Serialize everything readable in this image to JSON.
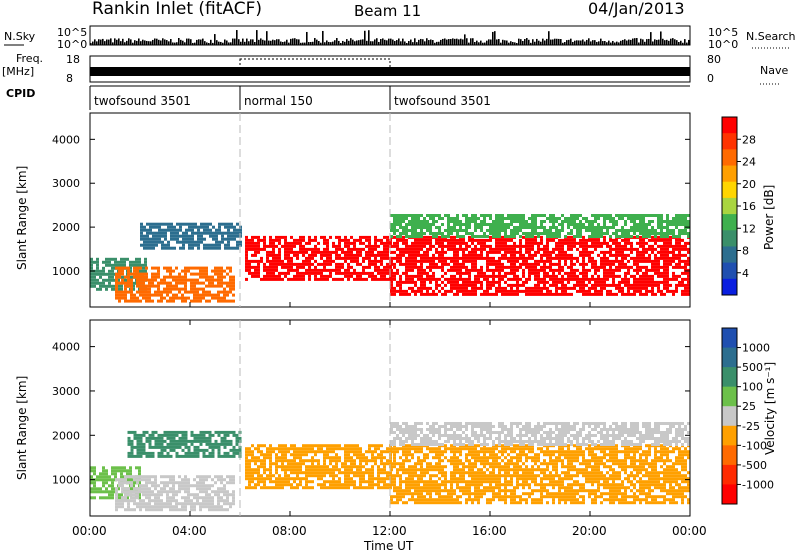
{
  "header": {
    "station": "Rankin Inlet (fitACF)",
    "beam": "Beam 11",
    "date": "04/Jan/2013"
  },
  "status_panels": {
    "nsky_label": "N.Sky",
    "nsky_ticks": [
      "10^5",
      "10^0"
    ],
    "nsearch_label": "N.Search",
    "nsearch_ticks": [
      "10^5",
      "10^0"
    ],
    "freq_label": "Freq.",
    "freq_unit": "[MHz]",
    "freq_ticks": [
      "18",
      "8"
    ],
    "nave_label": "Nave",
    "nave_ticks": [
      "80",
      "0"
    ],
    "cpid_label": "CPID",
    "cpid_segments": [
      {
        "name": "twofsound 3501",
        "start_h": 0,
        "end_h": 6
      },
      {
        "name": "normal 150",
        "start_h": 6,
        "end_h": 12
      },
      {
        "name": "twofsound 3501",
        "start_h": 12,
        "end_h": 24
      }
    ]
  },
  "axes": {
    "ylabel": "Slant Range [km]",
    "xlabel": "Time UT",
    "x_ticks": [
      "00:00",
      "04:00",
      "08:00",
      "12:00",
      "16:00",
      "20:00",
      "00:00"
    ],
    "y_ticks": [
      "1000",
      "2000",
      "3000",
      "4000"
    ]
  },
  "power_scale": {
    "label": "Power [dB]",
    "ticks": [
      "28",
      "24",
      "20",
      "16",
      "12",
      "8",
      "4"
    ],
    "colors": [
      "#ff0000",
      "#ff3300",
      "#ff6a00",
      "#ff9f00",
      "#ffd500",
      "#a9d540",
      "#3fb04e",
      "#3a8f6a",
      "#2c6e8f",
      "#1f4fb0",
      "#0a1fe0"
    ]
  },
  "velocity_scale": {
    "label": "Velocity [m s⁻¹]",
    "ticks": [
      "1000",
      "500",
      "100",
      "25",
      "-25",
      "-100",
      "-500",
      "-1000"
    ],
    "colors": [
      "#1f4fb0",
      "#2c6e8f",
      "#3a8f6a",
      "#6cc04a",
      "#c8c8c8",
      "#ffa000",
      "#ff6a00",
      "#ff2a00",
      "#ff0000"
    ]
  },
  "chart_data": [
    {
      "type": "heatmap",
      "title": "",
      "xlabel": "Time UT",
      "ylabel": "Slant Range [km]",
      "xlim": [
        0,
        24
      ],
      "ylim": [
        180,
        4600
      ],
      "colorbar": {
        "label": "Power [dB]",
        "range": [
          0,
          32
        ]
      },
      "regions": [
        {
          "t": [
            0.0,
            2.2
          ],
          "r": [
            600,
            1300
          ],
          "value": 10
        },
        {
          "t": [
            1.0,
            5.8
          ],
          "r": [
            300,
            1100
          ],
          "value": 26
        },
        {
          "t": [
            6.2,
            12.0
          ],
          "r": [
            800,
            1800
          ],
          "value": 30
        },
        {
          "t": [
            12.0,
            24.0
          ],
          "r": [
            500,
            1800
          ],
          "value": 30
        },
        {
          "t": [
            12.0,
            24.0
          ],
          "r": [
            1800,
            2300
          ],
          "value": 14
        },
        {
          "t": [
            2.0,
            6.0
          ],
          "r": [
            1500,
            2100
          ],
          "value": 8
        }
      ]
    },
    {
      "type": "heatmap",
      "title": "",
      "xlabel": "Time UT",
      "ylabel": "Slant Range [km]",
      "xlim": [
        0,
        24
      ],
      "ylim": [
        180,
        4600
      ],
      "colorbar": {
        "label": "Velocity [m s⁻¹]",
        "range": [
          -1000,
          1000
        ]
      },
      "regions": [
        {
          "t": [
            0.0,
            2.0
          ],
          "r": [
            600,
            1300
          ],
          "value": 150
        },
        {
          "t": [
            1.0,
            5.8
          ],
          "r": [
            300,
            1100
          ],
          "value": 0
        },
        {
          "t": [
            6.2,
            12.0
          ],
          "r": [
            800,
            1800
          ],
          "value": -200
        },
        {
          "t": [
            12.0,
            24.0
          ],
          "r": [
            500,
            1800
          ],
          "value": -300
        },
        {
          "t": [
            12.0,
            24.0
          ],
          "r": [
            1800,
            2300
          ],
          "value": -50
        },
        {
          "t": [
            1.5,
            6.0
          ],
          "r": [
            1500,
            2100
          ],
          "value": 400
        }
      ]
    }
  ]
}
